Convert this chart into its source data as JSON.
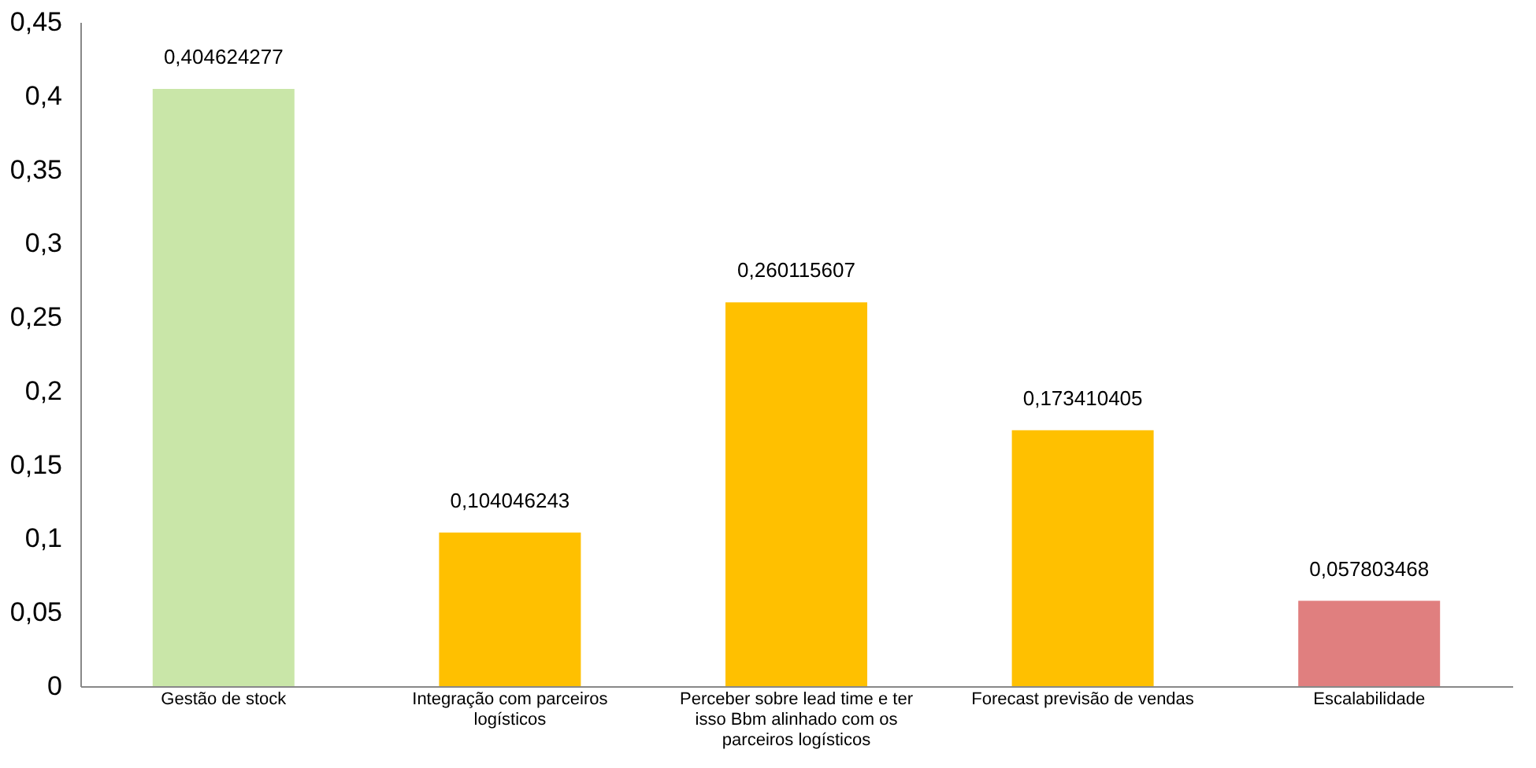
{
  "chart_data": {
    "type": "bar",
    "categories": [
      "Gestão de stock",
      "Integração com parceiros logísticos",
      "Perceber sobre lead time e ter isso Bbm alinhado com os parceiros logísticos",
      "Forecast previsão de vendas",
      "Escalabilidade"
    ],
    "values": [
      0.404624277,
      0.104046243,
      0.260115607,
      0.173410405,
      0.057803468
    ],
    "colors": [
      "#c9e6a8",
      "#ffc000",
      "#ffc000",
      "#ffc000",
      "#e07f7f"
    ],
    "value_labels": [
      "0,404624277",
      "0,104046243",
      "0,260115607",
      "0,173410405",
      "0,057803468"
    ],
    "ylim": [
      0,
      0.45
    ],
    "yticks": [
      {
        "value": 0,
        "label": "0"
      },
      {
        "value": 0.05,
        "label": "0,05"
      },
      {
        "value": 0.1,
        "label": "0,1"
      },
      {
        "value": 0.15,
        "label": "0,15"
      },
      {
        "value": 0.2,
        "label": "0,2"
      },
      {
        "value": 0.25,
        "label": "0,25"
      },
      {
        "value": 0.3,
        "label": "0,3"
      },
      {
        "value": 0.35,
        "label": "0,35"
      },
      {
        "value": 0.4,
        "label": "0,4"
      },
      {
        "value": 0.45,
        "label": "0,45"
      }
    ],
    "grid": false
  }
}
